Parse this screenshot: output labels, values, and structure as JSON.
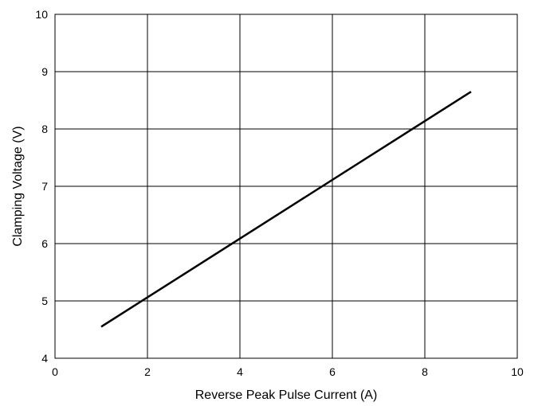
{
  "chart_data": {
    "type": "line",
    "title": "",
    "xlabel": "Reverse Peak Pulse Current (A)",
    "ylabel": "Clamping Voltage (V)",
    "xlim": [
      0,
      10
    ],
    "ylim": [
      4,
      10
    ],
    "xticks": [
      0,
      2,
      4,
      6,
      8,
      10
    ],
    "yticks": [
      4,
      5,
      6,
      7,
      8,
      9,
      10
    ],
    "xtick_labels": [
      "0",
      "2",
      "4",
      "6",
      "8",
      "10"
    ],
    "ytick_labels": [
      "4",
      "5",
      "6",
      "7",
      "8",
      "9",
      "10"
    ],
    "grid": true,
    "legend": "none",
    "series": [
      {
        "x": [
          1,
          9
        ],
        "y": [
          4.55,
          8.65
        ],
        "color": "#000000"
      }
    ]
  }
}
